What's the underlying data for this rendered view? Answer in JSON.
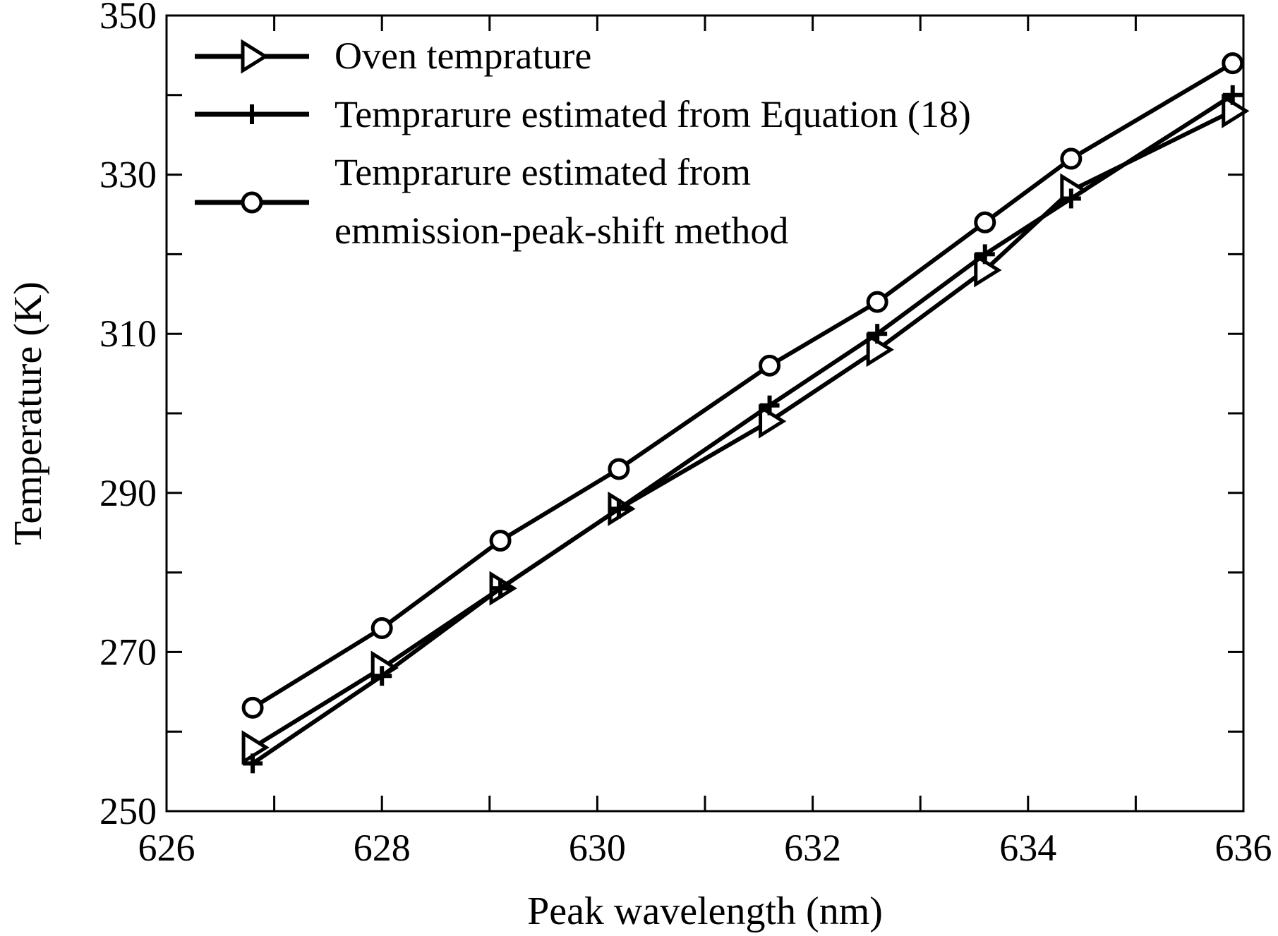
{
  "chart_data": {
    "type": "line",
    "title": "",
    "xlabel": "Peak wavelength (nm)",
    "ylabel": "Temperature (K)",
    "xlim": [
      626,
      636
    ],
    "ylim": [
      250,
      350
    ],
    "xticks": [
      626,
      628,
      630,
      632,
      634,
      636
    ],
    "yticks": [
      250,
      270,
      290,
      310,
      330,
      350
    ],
    "grid": false,
    "legend_position": "top-left",
    "series": [
      {
        "name": "Oven temprature",
        "marker": "triangle-right",
        "x": [
          626.8,
          628.0,
          629.1,
          630.2,
          631.6,
          632.6,
          633.6,
          634.4,
          635.9
        ],
        "y": [
          258,
          268,
          278,
          288,
          299,
          308,
          318,
          328,
          338
        ]
      },
      {
        "name": "Temprarure estimated from Equation (18)",
        "marker": "plus",
        "x": [
          626.8,
          628.0,
          629.1,
          630.2,
          631.6,
          632.6,
          633.6,
          634.4,
          635.9
        ],
        "y": [
          256,
          267,
          278,
          288,
          301,
          310,
          320,
          327,
          340
        ]
      },
      {
        "name": "Temprarure estimated from emmission-peak-shift method",
        "name_lines": [
          "Temprarure estimated from",
          "emmission-peak-shift method"
        ],
        "marker": "circle",
        "x": [
          626.8,
          628.0,
          629.1,
          630.2,
          631.6,
          632.6,
          633.6,
          634.4,
          635.9
        ],
        "y": [
          263,
          273,
          284,
          293,
          306,
          314,
          324,
          332,
          344
        ]
      }
    ]
  }
}
